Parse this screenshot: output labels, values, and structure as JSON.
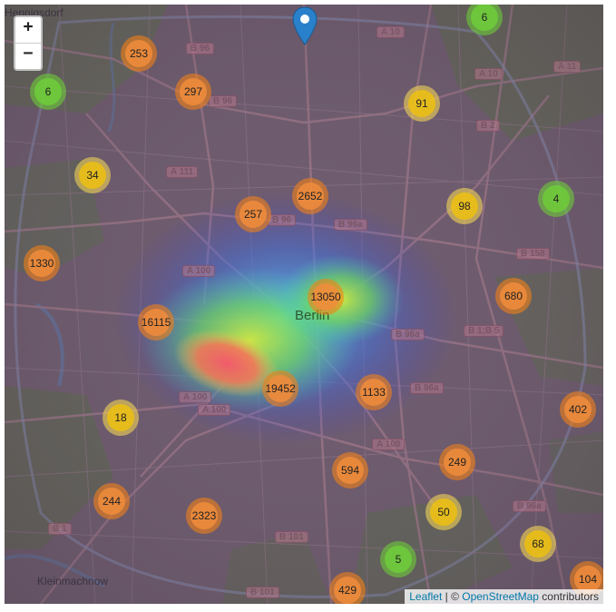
{
  "controls": {
    "zoom_in": "+",
    "zoom_out": "−"
  },
  "labels": {
    "city": "Berlin",
    "top_left_town": "Hennigsdorf",
    "bottom_left_town": "Kleinmachnow"
  },
  "roads": [
    "B 96",
    "B 96",
    "A 10",
    "A 10",
    "A 11",
    "B 2",
    "A 111",
    "B 96",
    "B 96a",
    "B 158",
    "A 100",
    "B 1;B 5",
    "B 96a",
    "B 96a",
    "A 100",
    "A 100",
    "A 100",
    "B 1",
    "B 101",
    "B 101",
    "B 96a"
  ],
  "clusters": [
    {
      "count": "6",
      "level": "green"
    },
    {
      "count": "253",
      "level": "orange"
    },
    {
      "count": "297",
      "level": "orange"
    },
    {
      "count": "6",
      "level": "green"
    },
    {
      "count": "91",
      "level": "yellow"
    },
    {
      "count": "34",
      "level": "yellow"
    },
    {
      "count": "2652",
      "level": "orange"
    },
    {
      "count": "257",
      "level": "orange"
    },
    {
      "count": "98",
      "level": "yellow"
    },
    {
      "count": "4",
      "level": "green"
    },
    {
      "count": "1330",
      "level": "orange"
    },
    {
      "count": "13050",
      "level": "orange"
    },
    {
      "count": "680",
      "level": "orange"
    },
    {
      "count": "16115",
      "level": "orange"
    },
    {
      "count": "19452",
      "level": "orange"
    },
    {
      "count": "1133",
      "level": "orange"
    },
    {
      "count": "402",
      "level": "orange"
    },
    {
      "count": "18",
      "level": "yellow"
    },
    {
      "count": "594",
      "level": "orange"
    },
    {
      "count": "249",
      "level": "orange"
    },
    {
      "count": "244",
      "level": "orange"
    },
    {
      "count": "2323",
      "level": "orange"
    },
    {
      "count": "50",
      "level": "yellow"
    },
    {
      "count": "68",
      "level": "yellow"
    },
    {
      "count": "5",
      "level": "green"
    },
    {
      "count": "429",
      "level": "orange"
    },
    {
      "count": "104",
      "level": "orange"
    }
  ],
  "attribution": {
    "leaflet": "Leaflet",
    "separator": " | © ",
    "osm": "OpenStreetMap",
    "suffix": " contributors"
  },
  "colors": {
    "cluster_orange": "#f08c3c",
    "cluster_yellow": "#f0c20c",
    "cluster_green": "#6ecc39",
    "marker": "#2a81cb"
  }
}
